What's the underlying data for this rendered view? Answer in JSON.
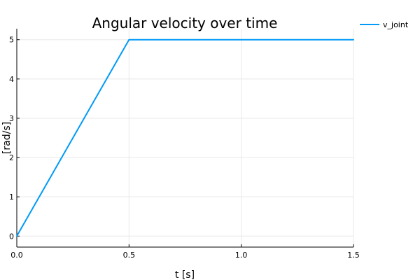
{
  "chart_data": {
    "type": "line",
    "title": "Angular velocity over time",
    "xlabel": "t [s]",
    "ylabel": "[rad/s]",
    "xlim": [
      0,
      1.5
    ],
    "ylim": [
      -0.28,
      5.28
    ],
    "xticks": [
      0.0,
      0.5,
      1.0,
      1.5
    ],
    "xtick_labels": [
      "0.0",
      "0.5",
      "1.0",
      "1.5"
    ],
    "yticks": [
      0,
      1,
      2,
      3,
      4,
      5
    ],
    "ytick_labels": [
      "0",
      "1",
      "2",
      "3",
      "4",
      "5"
    ],
    "grid": true,
    "legend_position": "top-right",
    "series": [
      {
        "name": "v_joint",
        "color": "#009af9",
        "x": [
          0.0,
          0.5,
          1.5
        ],
        "y": [
          0,
          5,
          5
        ]
      }
    ]
  }
}
